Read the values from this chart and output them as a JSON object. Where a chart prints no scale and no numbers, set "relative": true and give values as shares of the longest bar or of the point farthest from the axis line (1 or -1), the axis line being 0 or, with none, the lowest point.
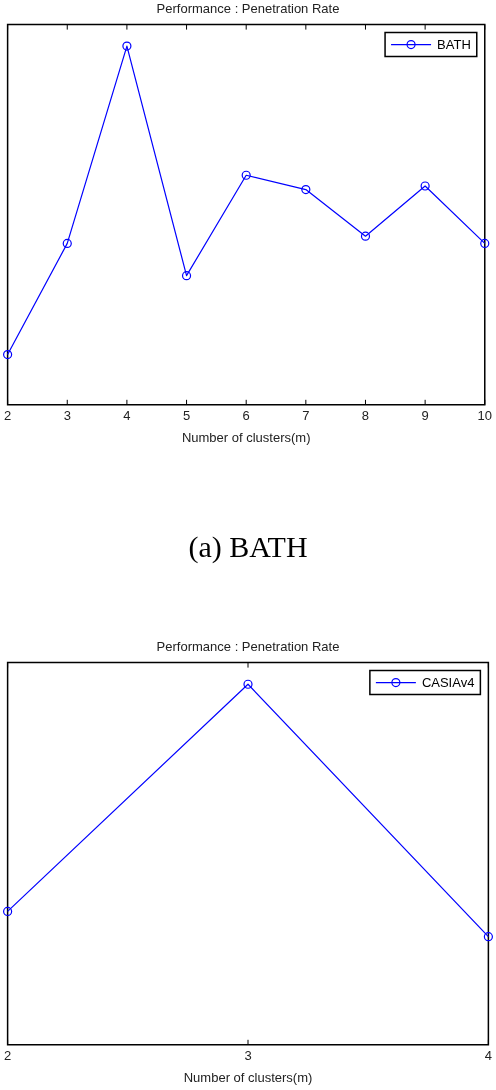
{
  "chart_data": [
    {
      "type": "line",
      "title": "Performance : Penetration Rate",
      "xlabel": "Number of clusters(m)",
      "x": [
        2,
        3,
        4,
        5,
        6,
        7,
        8,
        9,
        10
      ],
      "series": [
        {
          "name": "BATH",
          "color": "#0000ff",
          "values": [
            0.14,
            0.45,
            1,
            0.36,
            0.64,
            0.6,
            0.47,
            0.61,
            0.45
          ]
        }
      ],
      "relative": true,
      "xlim": [
        2,
        10
      ],
      "xticks": [
        2,
        3,
        4,
        5,
        6,
        7,
        8,
        9,
        10
      ],
      "legend": "top right",
      "marker": "circle",
      "grid": false,
      "annotations": [
        "(a) BATH"
      ]
    },
    {
      "type": "line",
      "title": "Performance : Penetration Rate",
      "xlabel": "Number of clusters(m)",
      "x": [
        2,
        3,
        4
      ],
      "series": [
        {
          "name": "CASIAv4",
          "color": "#0000ff",
          "values": [
            0.37,
            1,
            0.3
          ]
        }
      ],
      "relative": true,
      "xlim": [
        2,
        4
      ],
      "xticks": [
        2,
        3,
        4
      ],
      "legend": "top right",
      "marker": "circle",
      "grid": false
    }
  ]
}
